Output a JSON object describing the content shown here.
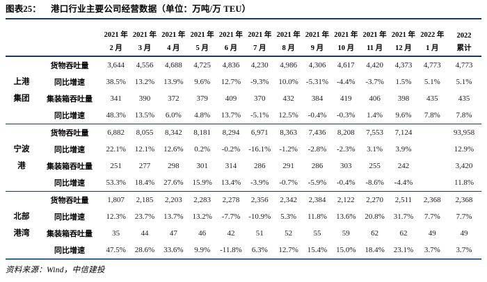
{
  "title": {
    "tag": "图表25：",
    "text": "港口行业主要公司经营数据（单位：万吨/万 TEU）"
  },
  "source": "资料来源：Wind，中信建投",
  "colors": {
    "rule_dark": "#17375E",
    "rule_blue": "#2E6E91",
    "text": "#1c1c1c"
  },
  "table": {
    "columns": [
      {
        "year": "2021 年",
        "month": "2 月"
      },
      {
        "year": "2021 年",
        "month": "3 月"
      },
      {
        "year": "2021 年",
        "month": "4 月"
      },
      {
        "year": "2021 年",
        "month": "5 月"
      },
      {
        "year": "2021 年",
        "month": "6 月"
      },
      {
        "year": "2021 年",
        "month": "7 月"
      },
      {
        "year": "2021 年",
        "month": "8 月"
      },
      {
        "year": "2021 年",
        "month": "9 月"
      },
      {
        "year": "2021 年",
        "month": "10 月"
      },
      {
        "year": "2021 年",
        "month": "11 月"
      },
      {
        "year": "2021 年",
        "month": "12 月"
      },
      {
        "year": "2022 年",
        "month": "1 月"
      },
      {
        "year": "2022",
        "month": "累计"
      }
    ],
    "groups": [
      {
        "name_lines": [
          "上港",
          "集团"
        ],
        "rows": [
          {
            "label": "货物吞吐量",
            "values": [
              "3,644",
              "4,556",
              "4,688",
              "4,725",
              "4,836",
              "4,230",
              "4,986",
              "4,306",
              "4,617",
              "4,420",
              "4,373",
              "4,773",
              "4,773"
            ]
          },
          {
            "label": "同比增速",
            "values": [
              "38.5%",
              "13.2%",
              "13.9%",
              "9.6%",
              "12.7%",
              "-9.3%",
              "10.0%",
              "-5.31%",
              "-4.4%",
              "-3.7%",
              "1.5%",
              "5.1%",
              "5.1%"
            ]
          },
          {
            "label": "集装箱吞吐量",
            "values": [
              "341",
              "390",
              "372",
              "379",
              "409",
              "370",
              "432",
              "384",
              "419",
              "406",
              "398",
              "435",
              "435"
            ]
          },
          {
            "label": "同比增速",
            "values": [
              "48.3%",
              "13.5%",
              "6.0%",
              "4.8%",
              "13.7%",
              "-5.1%",
              "12.5%",
              "-0.4%",
              "-0.3%",
              "1.4%",
              "9.6%",
              "7.8%",
              "7.8%"
            ]
          }
        ]
      },
      {
        "name_lines": [
          "宁波",
          "港"
        ],
        "rows": [
          {
            "label": "货物吞吐量",
            "values": [
              "6,882",
              "8,055",
              "8,342",
              "8,181",
              "8,294",
              "6,971",
              "8,363",
              "7,436",
              "8,208",
              "7,553",
              "7,124",
              "",
              "93,958"
            ]
          },
          {
            "label": "同比增速",
            "values": [
              "22.1%",
              "12.1%",
              "12.6%",
              "0.2%",
              "-0.2%",
              "-16.1%",
              "-1.2%",
              "-2.8%",
              "-2.3%",
              "3.1%",
              "3.9%",
              "",
              "12.9%"
            ]
          },
          {
            "label": "集装箱吞吐量",
            "values": [
              "251",
              "277",
              "298",
              "301",
              "314",
              "286",
              "291",
              "286",
              "303",
              "255",
              "242",
              "",
              "3,420"
            ]
          },
          {
            "label": "同比增速",
            "values": [
              "53.3%",
              "18.4%",
              "27.6%",
              "15.9%",
              "13.4%",
              "-3.9%",
              "-0.7%",
              "-5.9%",
              "-0.4%",
              "-8.6%",
              "-4.4%",
              "",
              "11.8%"
            ]
          }
        ]
      },
      {
        "name_lines": [
          "北部",
          "港湾"
        ],
        "rows": [
          {
            "label": "货物吞吐量",
            "values": [
              "1,807",
              "2,185",
              "2,203",
              "2,283",
              "2,278",
              "2,356",
              "2,342",
              "2,384",
              "2,122",
              "2,270",
              "2,511",
              "2,368",
              "2,368"
            ]
          },
          {
            "label": "同比增速",
            "values": [
              "12.3%",
              "23.7%",
              "13.7%",
              "13.2%",
              "-7.7%",
              "-10.9%",
              "5.3%",
              "11.8%",
              "13.6%",
              "20.8%",
              "31.7%",
              "7.7%",
              "7.7%"
            ]
          },
          {
            "label": "集装箱吞吐量",
            "values": [
              "35",
              "44",
              "47",
              "46",
              "42",
              "51",
              "52",
              "55",
              "59",
              "62",
              "62",
              "49",
              "49"
            ]
          },
          {
            "label": "同比增速",
            "values": [
              "47.5%",
              "28.6%",
              "33.6%",
              "9.9%",
              "-11.8%",
              "6.3%",
              "12.7%",
              "15.4%",
              "15.0%",
              "18.4%",
              "23.1%",
              "3.7%",
              "3.7%"
            ]
          }
        ]
      }
    ]
  }
}
